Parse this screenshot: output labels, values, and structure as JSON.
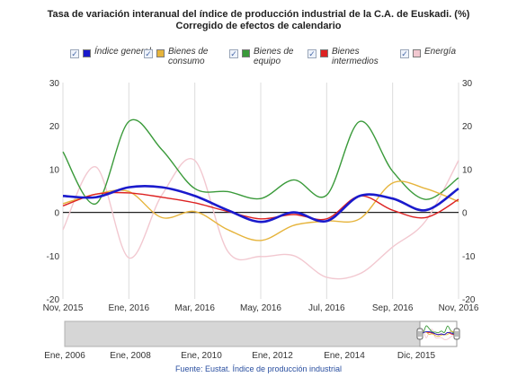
{
  "title_line1": "Tasa de variación interanual del índice de producción industrial de la C.A. de Euskadi. (%)",
  "title_line2": "Corregido de efectos de calendario",
  "source": "Fuente: Eustat. Índice de producción industrial",
  "legend": [
    {
      "label": "Índice general",
      "color": "#1a1acc",
      "checked": "✓"
    },
    {
      "label": "Bienes de consumo",
      "color": "#e6b43c",
      "checked": "✓"
    },
    {
      "label": "Bienes de equipo",
      "color": "#3a9a3a",
      "checked": "✓"
    },
    {
      "label": "Bienes intermedios",
      "color": "#dd2222",
      "checked": "✓"
    },
    {
      "label": "Energía",
      "color": "#f2c8d0",
      "checked": "✓"
    }
  ],
  "chart_data": {
    "type": "line",
    "x": [
      "Nov, 2015",
      "Dic, 2015",
      "Ene, 2016",
      "Feb, 2016",
      "Mar, 2016",
      "Abr, 2016",
      "May, 2016",
      "Jun, 2016",
      "Jul, 2016",
      "Ago, 2016",
      "Sep, 2016",
      "Oct, 2016",
      "Nov, 2016"
    ],
    "x_tick_labels": [
      "Nov, 2015",
      "Ene, 2016",
      "Mar, 2016",
      "May, 2016",
      "Jul, 2016",
      "Sep, 2016",
      "Nov, 2016"
    ],
    "ylim": [
      -20,
      30
    ],
    "y_ticks": [
      -20,
      -10,
      0,
      10,
      20,
      30
    ],
    "grid": "vertical",
    "series": [
      {
        "name": "Índice general",
        "color": "#1a1acc",
        "values": [
          3.8,
          3.5,
          5.8,
          5.8,
          3.8,
          0.5,
          -2.2,
          0,
          -2,
          3.8,
          3.2,
          0.5,
          5.5
        ]
      },
      {
        "name": "Bienes de consumo",
        "color": "#e6b43c",
        "values": [
          2,
          4.2,
          4.8,
          -1.2,
          0.2,
          -4,
          -6.5,
          -3,
          -2,
          -1.5,
          6.8,
          5.5,
          2.5
        ]
      },
      {
        "name": "Bienes de equipo",
        "color": "#3a9a3a",
        "values": [
          14,
          2,
          21,
          14.5,
          5.5,
          4.8,
          3.2,
          7.5,
          4,
          21,
          9.5,
          3,
          8
        ]
      },
      {
        "name": "Bienes intermedios",
        "color": "#dd2222",
        "values": [
          1.5,
          4.2,
          4.5,
          3.5,
          2.2,
          0.2,
          -1.5,
          -0.5,
          -1.5,
          3.8,
          0.5,
          -1.2,
          3
        ]
      },
      {
        "name": "Energía",
        "color": "#f2c8d0",
        "values": [
          -4,
          10.5,
          -10.5,
          4,
          12,
          -9,
          -10.2,
          -10,
          -15,
          -14.2,
          -8,
          -2,
          12
        ]
      }
    ],
    "navigator": {
      "x_labels": [
        "Ene, 2006",
        "Ene, 2008",
        "Ene, 2010",
        "Ene, 2012",
        "Ene, 2014",
        "Dic, 2015"
      ],
      "range_start": "Nov, 2015",
      "range_end": "Nov, 2016"
    }
  }
}
